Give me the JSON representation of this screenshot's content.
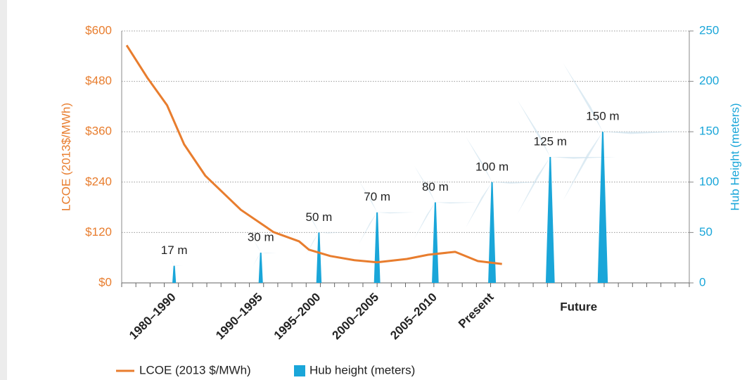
{
  "chart_data": {
    "type": "line-bar",
    "y_label": "LCOE (2013$/MWh)",
    "y2_label": "Hub Height (meters)",
    "xlim": [
      0,
      40
    ],
    "xticks": [
      {
        "value": 3.7,
        "label": "1980–1990"
      },
      {
        "value": 9.8,
        "label": "1990–1995"
      },
      {
        "value": 13.9,
        "label": "1995–2000"
      },
      {
        "value": 18,
        "label": "2000–2005"
      },
      {
        "value": 22.1,
        "label": "2005–2010"
      },
      {
        "value": 26.1,
        "label": "Present"
      },
      {
        "value": 32.2,
        "label": "Future"
      }
    ],
    "xminorticks": [
      0,
      1,
      2,
      3,
      4,
      5,
      6,
      7,
      8,
      9,
      10,
      11,
      12,
      13,
      14,
      15,
      16,
      17,
      18,
      19,
      20,
      21,
      22,
      23,
      24,
      25,
      26,
      27,
      28,
      29,
      30,
      31,
      32,
      33,
      34,
      35,
      36,
      37,
      38,
      39,
      40
    ],
    "ylim": [
      0,
      600
    ],
    "yticks": [
      {
        "value": 0,
        "label": "$0"
      },
      {
        "value": 120,
        "label": "$120"
      },
      {
        "value": 240,
        "label": "$240"
      },
      {
        "value": 360,
        "label": "$360"
      },
      {
        "value": 480,
        "label": "$480"
      },
      {
        "value": 600,
        "label": "$600"
      }
    ],
    "y2lim": [
      0,
      250
    ],
    "y2ticks": [
      0,
      50,
      100,
      150,
      200,
      250
    ],
    "grid": true,
    "series": [
      {
        "name": "LCOE (2013 $/MWh)",
        "color": "#e87d2e",
        "type": "line",
        "x": [
          0.35,
          1.8,
          3.2,
          4.4,
          5.9,
          8.4,
          10.7,
          12.5,
          13.2,
          14.7,
          16.4,
          18,
          20.1,
          21.6,
          23.5,
          25.1,
          26.8
        ],
        "values": [
          566,
          489,
          423,
          330,
          255,
          174,
          121,
          99,
          79,
          64,
          54,
          49,
          57,
          67,
          74,
          52,
          45
        ]
      },
      {
        "name": "Hub height (meters)",
        "color": "#1aa6d9",
        "type": "bar",
        "axis": "y2",
        "x": [
          3.7,
          9.8,
          13.9,
          18,
          22.1,
          26.1,
          30.2,
          33.9
        ],
        "values": [
          17,
          30,
          50,
          70,
          80,
          100,
          125,
          150
        ],
        "value_labels": [
          "17 m",
          "30 m",
          "50 m",
          "70 m",
          "80 m",
          "100 m",
          "125 m",
          "150 m"
        ]
      }
    ]
  }
}
